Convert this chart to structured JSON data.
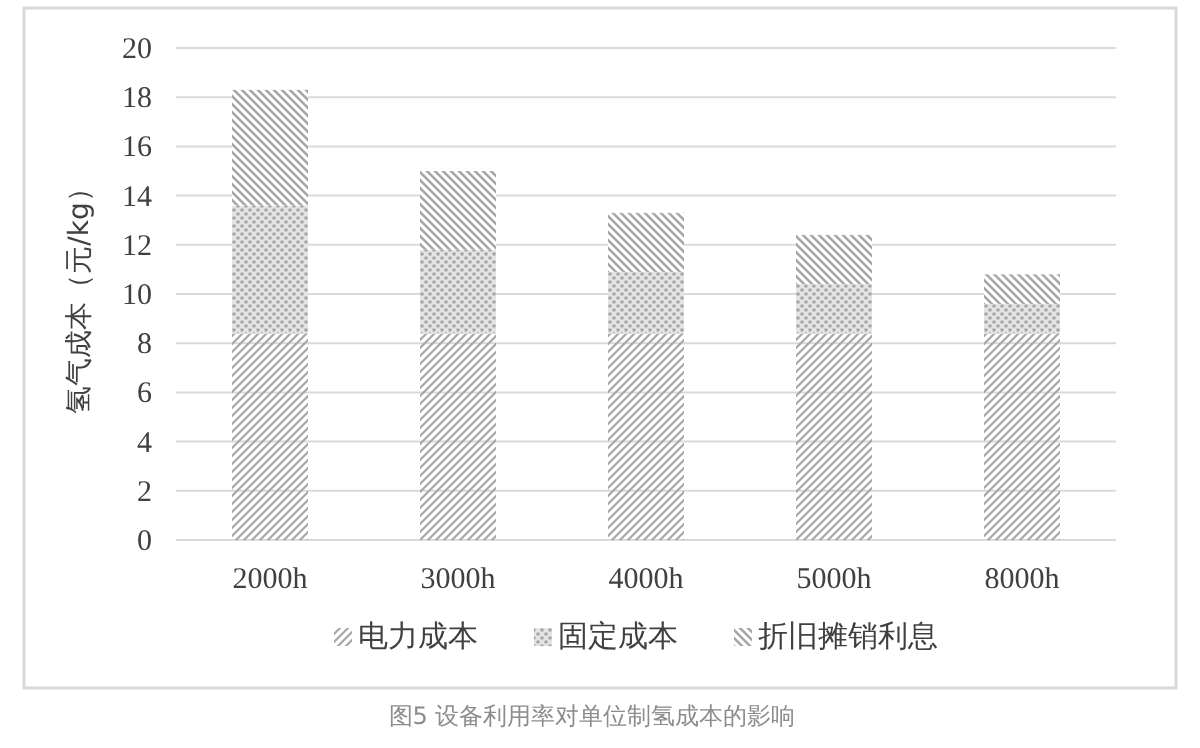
{
  "chart_data": {
    "type": "bar",
    "stacked": true,
    "ylabel": "氢气成本（元/kg）",
    "categories": [
      "2000h",
      "3000h",
      "4000h",
      "5000h",
      "8000h"
    ],
    "series": [
      {
        "name": "电力成本",
        "color": "#a6a6a6",
        "values": [
          8.4,
          8.4,
          8.4,
          8.4,
          8.4
        ]
      },
      {
        "name": "固定成本",
        "color": "#a6a6a6",
        "values": [
          5.2,
          3.4,
          2.5,
          2.0,
          1.2
        ]
      },
      {
        "name": "折旧摊销利息",
        "color": "#a6a6a6",
        "values": [
          4.7,
          3.2,
          2.4,
          2.0,
          1.2
        ]
      }
    ],
    "ylim": [
      0,
      20
    ],
    "yticks": [
      0,
      2,
      4,
      6,
      8,
      10,
      12,
      14,
      16,
      18,
      20
    ],
    "grid": "y",
    "legend": "bottom",
    "annotations": [
      "图5  设备利用率对单位制氢成本的影响"
    ]
  }
}
